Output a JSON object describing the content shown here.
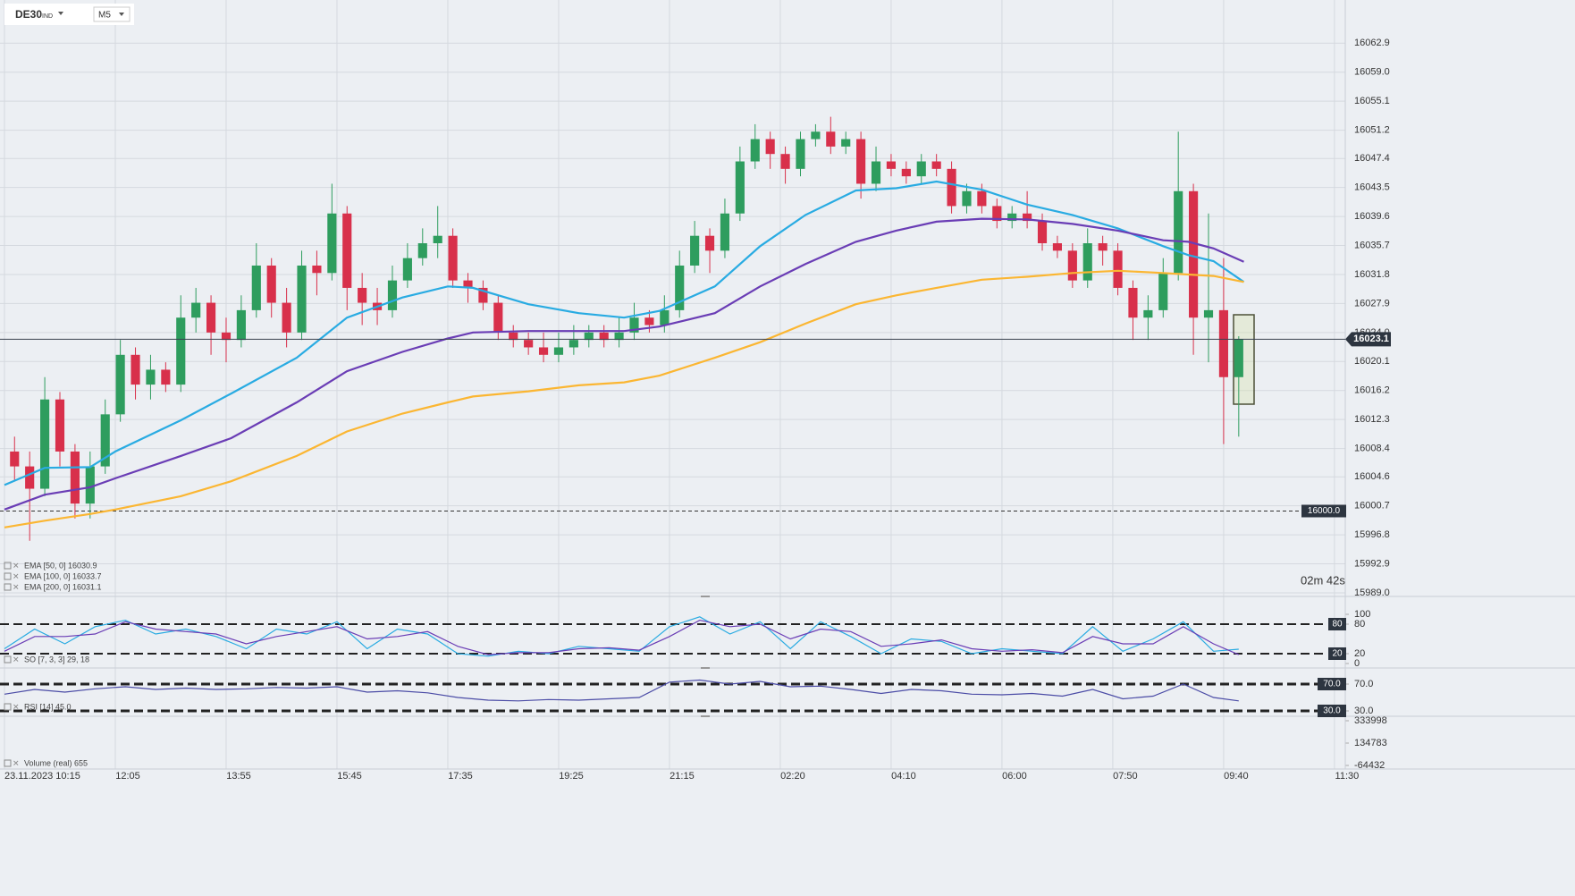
{
  "toolbar": {
    "instrument": "DE30",
    "market": "IND",
    "interval": "M5"
  },
  "countdown": "02m 42s",
  "chart_data": [
    {
      "type": "candlestick",
      "xlim": [
        0,
        265
      ],
      "xticks": [
        {
          "value": 0,
          "label": "23.11.2023 10:15"
        },
        {
          "value": 22,
          "label": "12:05"
        },
        {
          "value": 44,
          "label": "13:55"
        },
        {
          "value": 66,
          "label": "15:45"
        },
        {
          "value": 88,
          "label": "17:35"
        },
        {
          "value": 110,
          "label": "19:25"
        },
        {
          "value": 132,
          "label": "21:15"
        },
        {
          "value": 154,
          "label": "02:20"
        },
        {
          "value": 176,
          "label": "04:10"
        },
        {
          "value": 198,
          "label": "06:00"
        },
        {
          "value": 220,
          "label": "07:50"
        },
        {
          "value": 242,
          "label": "09:40"
        },
        {
          "value": 264,
          "label": "11:30"
        }
      ],
      "ylim": [
        15989,
        16068.7
      ],
      "yticks": [
        16062.9,
        {
          "value": 16059,
          "label": "16059.0"
        },
        16055.1,
        16051.2,
        16047.4,
        16043.5,
        16039.6,
        16035.7,
        16031.8,
        16027.9,
        {
          "value": 16024,
          "label": "16024.0"
        },
        16020.1,
        16016.2,
        16012.3,
        16008.4,
        16004.6,
        16000.7,
        15996.8,
        15992.9,
        {
          "value": 15989,
          "label": "15989.0"
        }
      ],
      "grid": true,
      "up_color": "#2e9d5e",
      "down_color": "#d8304b",
      "x": [
        2,
        5,
        8,
        11,
        14,
        17,
        20,
        23,
        26,
        29,
        32,
        35,
        38,
        41,
        44,
        47,
        50,
        53,
        56,
        59,
        62,
        65,
        68,
        71,
        74,
        77,
        80,
        83,
        86,
        89,
        92,
        95,
        98,
        101,
        104,
        107,
        110,
        113,
        116,
        119,
        122,
        125,
        128,
        131,
        134,
        137,
        140,
        143,
        146,
        149,
        152,
        155,
        158,
        161,
        164,
        167,
        170,
        173,
        176,
        179,
        182,
        185,
        188,
        191,
        194,
        197,
        200,
        203,
        206,
        209,
        212,
        215,
        218,
        221,
        224,
        227,
        230,
        233,
        236,
        239,
        242,
        245
      ],
      "open": [
        16008,
        16006,
        16003,
        16015,
        16008,
        16001,
        16006,
        16013,
        16021,
        16017,
        16019,
        16017,
        16026,
        16028,
        16024,
        16023,
        16027,
        16033,
        16028,
        16024,
        16033,
        16032,
        16040,
        16030,
        16028,
        16027,
        16031,
        16034,
        16036,
        16037,
        16031,
        16030,
        16028,
        16024,
        16023,
        16022,
        16021,
        16022,
        16023,
        16024,
        16023,
        16024,
        16026,
        16025,
        16027,
        16033,
        16037,
        16035,
        16040,
        16047,
        16050,
        16048,
        16046,
        16050,
        16051,
        16049,
        16050,
        16044,
        16047,
        16046,
        16045,
        16047,
        16046,
        16041,
        16043,
        16041,
        16039,
        16040,
        16039,
        16036,
        16035,
        16031,
        16036,
        16035,
        16030,
        16026,
        16027,
        16032,
        16043,
        16026,
        16027,
        16018
      ],
      "high": [
        16010,
        16008,
        16018,
        16016,
        16009,
        16008,
        16015,
        16023,
        16022,
        16021,
        16020,
        16029,
        16030,
        16029,
        16026,
        16029,
        16036,
        16034,
        16030,
        16035,
        16035,
        16044,
        16041,
        16032,
        16030,
        16033,
        16036,
        16038,
        16041,
        16038,
        16032,
        16031,
        16029,
        16025,
        16024,
        16024,
        16024,
        16025,
        16025,
        16025,
        16026,
        16028,
        16027,
        16029,
        16035,
        16039,
        16038,
        16042,
        16049,
        16052,
        16051,
        16049,
        16051,
        16052,
        16053,
        16051,
        16051,
        16049,
        16048,
        16047,
        16048,
        16048,
        16047,
        16044,
        16044,
        16042,
        16041,
        16043,
        16040,
        16037,
        16036,
        16038,
        16037,
        16036,
        16031,
        16029,
        16034,
        16051,
        16044,
        16040,
        16034,
        16023.5
      ],
      "low": [
        16004,
        15996,
        16002,
        16006,
        15999,
        15999,
        16005,
        16012,
        16015,
        16015,
        16016,
        16016,
        16024,
        16021,
        16020,
        16022,
        16026,
        16026,
        16022,
        16023,
        16029,
        16031,
        16027,
        16025,
        16025,
        16026,
        16030,
        16033,
        16034,
        16030,
        16028,
        16027,
        16023,
        16022,
        16021,
        16020,
        16020,
        16021,
        16022,
        16022,
        16022,
        16023,
        16024,
        16024,
        16026,
        16032,
        16032,
        16034,
        16039,
        16046,
        16046,
        16044,
        16045,
        16049,
        16048,
        16048,
        16042,
        16043,
        16045,
        16044,
        16044,
        16045,
        16040,
        16040,
        16040,
        16038,
        16038,
        16038,
        16035,
        16034,
        16030,
        16030,
        16033,
        16029,
        16023,
        16023,
        16026,
        16031,
        16021,
        16020,
        16009,
        16010
      ],
      "close": [
        16006,
        16003,
        16015,
        16008,
        16001,
        16006,
        16013,
        16021,
        16017,
        16019,
        16017,
        16026,
        16028,
        16024,
        16023,
        16027,
        16033,
        16028,
        16024,
        16033,
        16032,
        16040,
        16030,
        16028,
        16027,
        16031,
        16034,
        16036,
        16037,
        16031,
        16030,
        16028,
        16024,
        16023,
        16022,
        16021,
        16022,
        16023,
        16024,
        16023,
        16024,
        16026,
        16025,
        16027,
        16033,
        16037,
        16035,
        16040,
        16047,
        16050,
        16048,
        16046,
        16050,
        16051,
        16049,
        16050,
        16044,
        16047,
        16046,
        16045,
        16047,
        16046,
        16041,
        16043,
        16041,
        16039,
        16040,
        16039,
        16036,
        16035,
        16031,
        16036,
        16035,
        16030,
        16026,
        16027,
        16032,
        16043,
        16026,
        16027,
        16018,
        16023.1
      ],
      "series": [
        {
          "name": "EMA [50, 0] 16030.9",
          "color": "#29abe2",
          "x": [
            0,
            8,
            17,
            22,
            35,
            45,
            58,
            68,
            79,
            88,
            93,
            104,
            114,
            123,
            130,
            141,
            150,
            159,
            169,
            177,
            185,
            194,
            203,
            212,
            221,
            230,
            235,
            240,
            246
          ],
          "values": [
            16003.5,
            16005.8,
            16005.9,
            16008.0,
            16012.2,
            16015.8,
            16020.6,
            16026.0,
            16028.7,
            16030.2,
            16030.0,
            16027.8,
            16026.6,
            16026.0,
            16026.9,
            16030.2,
            16035.6,
            16039.8,
            16043.1,
            16043.4,
            16044.3,
            16043.2,
            16041.2,
            16039.8,
            16038.0,
            16035.6,
            16034.4,
            16033.6,
            16030.8
          ]
        },
        {
          "name": "EMA [100, 0] 16033.7",
          "color": "#6a3db5",
          "x": [
            0,
            8,
            17,
            22,
            35,
            45,
            58,
            68,
            79,
            88,
            93,
            104,
            114,
            123,
            130,
            141,
            150,
            159,
            169,
            177,
            185,
            194,
            203,
            212,
            221,
            230,
            235,
            240,
            246
          ],
          "values": [
            16000.2,
            16002.2,
            16003.2,
            16004.4,
            16007.4,
            16009.8,
            16014.6,
            16018.8,
            16021.4,
            16023.2,
            16024.0,
            16024.2,
            16024.2,
            16024.2,
            16024.8,
            16026.6,
            16030.2,
            16033.2,
            16036.2,
            16037.7,
            16038.9,
            16039.3,
            16039.2,
            16038.6,
            16037.7,
            16036.4,
            16036.2,
            16035.3,
            16033.5
          ]
        },
        {
          "name": "EMA [200, 0] 16031.1",
          "color": "#fbb632",
          "x": [
            0,
            8,
            17,
            22,
            35,
            45,
            58,
            68,
            79,
            88,
            93,
            104,
            114,
            123,
            130,
            141,
            150,
            159,
            169,
            177,
            185,
            194,
            203,
            212,
            221,
            230,
            235,
            240,
            246
          ],
          "values": [
            15997.8,
            15998.7,
            15999.6,
            16000.2,
            16002.0,
            16004.0,
            16007.4,
            16010.7,
            16013.1,
            16014.6,
            16015.4,
            16016.1,
            16016.9,
            16017.3,
            16018.2,
            16020.6,
            16022.7,
            16025.2,
            16027.8,
            16029.0,
            16030.0,
            16031.1,
            16031.5,
            16032.0,
            16032.3,
            16032.0,
            16031.8,
            16031.6,
            16030.8
          ]
        }
      ],
      "levels": [
        {
          "value": 16000,
          "label": "16000.0"
        }
      ],
      "last_price": 16023.1
    },
    {
      "type": "line",
      "legend": "SO [7, 3, 3] 29, 18",
      "ylim": [
        0,
        100
      ],
      "yticks": [
        100,
        80,
        20,
        0
      ],
      "levels": [
        80,
        20
      ],
      "series": [
        {
          "color": "#29abe2",
          "x": [
            0,
            6,
            12,
            18,
            24,
            30,
            36,
            42,
            48,
            54,
            60,
            66,
            72,
            78,
            84,
            90,
            96,
            102,
            108,
            114,
            120,
            126,
            132,
            138,
            144,
            150,
            156,
            162,
            168,
            174,
            180,
            186,
            192,
            198,
            204,
            210,
            216,
            222,
            228,
            234,
            240,
            245
          ],
          "values": [
            30,
            70,
            40,
            75,
            88,
            60,
            70,
            55,
            30,
            70,
            60,
            85,
            30,
            70,
            60,
            20,
            15,
            25,
            20,
            35,
            30,
            25,
            75,
            95,
            60,
            85,
            30,
            85,
            55,
            20,
            50,
            45,
            20,
            30,
            25,
            20,
            75,
            25,
            50,
            85,
            25,
            29
          ]
        },
        {
          "color": "#6a3db5",
          "x": [
            0,
            6,
            12,
            18,
            24,
            30,
            36,
            42,
            48,
            54,
            60,
            66,
            72,
            78,
            84,
            90,
            96,
            102,
            108,
            114,
            120,
            126,
            132,
            138,
            144,
            150,
            156,
            162,
            168,
            174,
            180,
            186,
            192,
            198,
            204,
            210,
            216,
            222,
            228,
            234,
            240,
            245
          ],
          "values": [
            25,
            55,
            55,
            60,
            85,
            70,
            65,
            60,
            40,
            55,
            65,
            75,
            50,
            55,
            65,
            35,
            18,
            22,
            22,
            30,
            32,
            27,
            55,
            88,
            75,
            80,
            50,
            70,
            65,
            35,
            40,
            48,
            30,
            25,
            28,
            22,
            55,
            40,
            40,
            75,
            40,
            18
          ]
        }
      ]
    },
    {
      "type": "line",
      "legend": "RSI [14] 45.0",
      "ylim": [
        20,
        90
      ],
      "yticks": [
        {
          "value": 70,
          "label": "70.0"
        },
        {
          "value": 30,
          "label": "30.0"
        }
      ],
      "levels": [
        {
          "value": 70,
          "label": "70.0"
        },
        {
          "value": 30,
          "label": "30.0"
        }
      ],
      "series": [
        {
          "color": "#4b4ca6",
          "x": [
            0,
            6,
            12,
            18,
            24,
            30,
            36,
            42,
            48,
            54,
            60,
            66,
            72,
            78,
            84,
            90,
            96,
            102,
            108,
            114,
            120,
            126,
            132,
            138,
            144,
            150,
            156,
            162,
            168,
            174,
            180,
            186,
            192,
            198,
            204,
            210,
            216,
            222,
            228,
            234,
            240,
            245
          ],
          "values": [
            55,
            62,
            58,
            63,
            66,
            62,
            64,
            62,
            63,
            65,
            64,
            66,
            58,
            60,
            57,
            50,
            46,
            45,
            47,
            46,
            48,
            50,
            73,
            76,
            70,
            74,
            66,
            67,
            62,
            56,
            62,
            60,
            55,
            54,
            56,
            52,
            62,
            48,
            52,
            70,
            50,
            45
          ]
        }
      ]
    },
    {
      "type": "bar",
      "legend": "Volume  (real)  655",
      "ylim": [
        -64432,
        333998
      ],
      "yticks": [
        333998,
        134783,
        -64432
      ]
    }
  ]
}
